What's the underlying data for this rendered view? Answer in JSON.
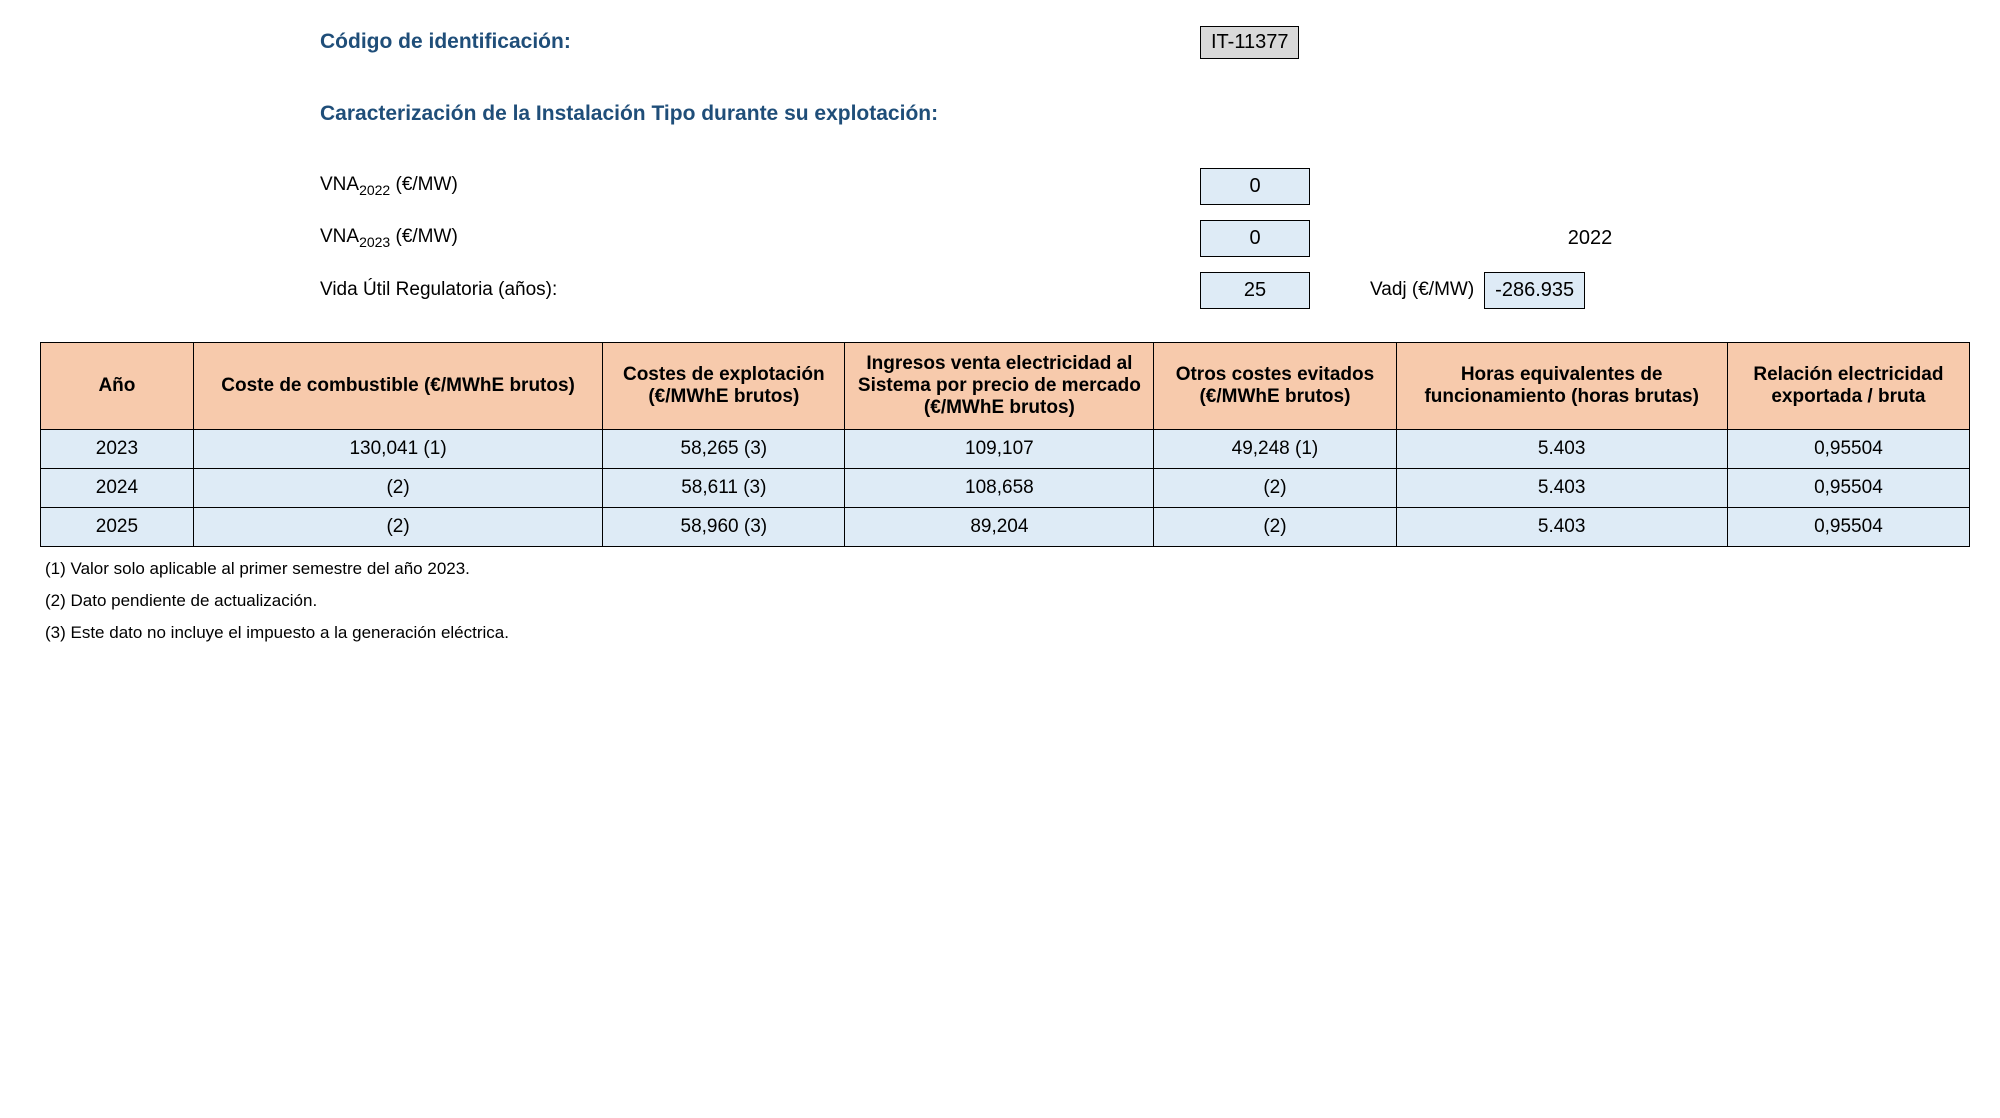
{
  "header": {
    "id_label": "Código de identificación:",
    "id_value": "IT-11377",
    "caract_label": "Caracterización de la Instalación Tipo durante su explotación:",
    "vna2022_label_pre": "VNA",
    "vna2022_sub": "2022",
    "vna2022_unit": " (€/MW)",
    "vna2022_value": "0",
    "vna2023_label_pre": "VNA",
    "vna2023_sub": "2023",
    "vna2023_unit": " (€/MW)",
    "vna2023_value": "0",
    "vna2023_year_extra": "2022",
    "vida_label": "Vida Útil Regulatoria (años):",
    "vida_value": "25",
    "vadj_label": "Vadj (€/MW)",
    "vadj_value": "-286.935"
  },
  "table": {
    "columns": [
      "Año",
      "Coste de combustible (€/MWhE brutos)",
      "Costes de explotación (€/MWhE brutos)",
      "Ingresos venta electricidad al Sistema por precio de mercado (€/MWhE brutos)",
      "Otros costes evitados (€/MWhE brutos)",
      "Horas equivalentes de funcionamiento (horas brutas)",
      "Relación electricidad exportada / bruta"
    ],
    "rows": [
      [
        "2023",
        "130,041 (1)",
        "58,265 (3)",
        "109,107",
        "49,248 (1)",
        "5.403",
        "0,95504"
      ],
      [
        "2024",
        "(2)",
        "58,611 (3)",
        "108,658",
        "(2)",
        "5.403",
        "0,95504"
      ],
      [
        "2025",
        "(2)",
        "58,960 (3)",
        "89,204",
        "(2)",
        "5.403",
        "0,95504"
      ]
    ],
    "col_classes": [
      "col-ano",
      "col-comb",
      "col-expl",
      "col-ingr",
      "col-otros",
      "col-horas",
      "col-relac"
    ]
  },
  "footnotes": [
    "(1) Valor solo aplicable al primer semestre del año 2023.",
    "(2) Dato pendiente de actualización.",
    "(3) Este dato no incluye el impuesto a la generación eléctrica."
  ],
  "styling": {
    "header_color": "#1f4e79",
    "table_header_bg": "#f7caac",
    "table_cell_bg": "#deebf6",
    "code_box_bg": "#d9d9d9",
    "border_color": "#000000",
    "font_family": "Arial"
  }
}
